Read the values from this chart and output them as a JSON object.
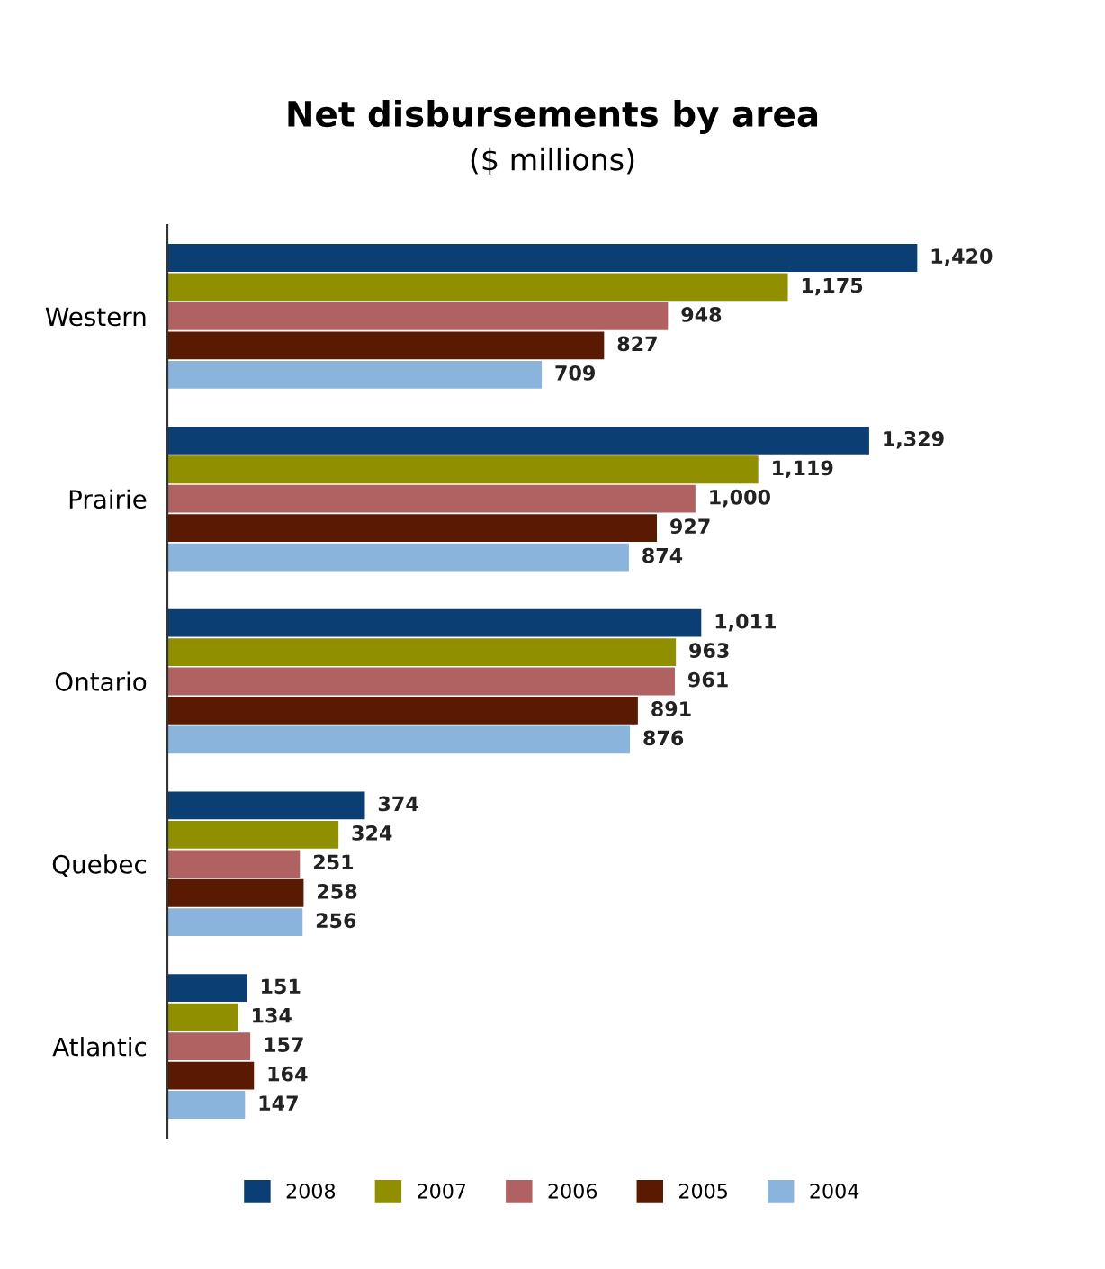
{
  "chart_data": {
    "type": "bar",
    "orientation": "horizontal",
    "title": "Net disbursements by area",
    "subtitle": "($ millions)",
    "categories": [
      "Western",
      "Prairie",
      "Ontario",
      "Quebec",
      "Atlantic"
    ],
    "series": [
      {
        "name": "2008",
        "color": "#0b3f73",
        "values": [
          1420,
          1329,
          1011,
          374,
          151
        ],
        "value_labels": [
          "1,420",
          "1,329",
          "1,011",
          "374",
          "151"
        ]
      },
      {
        "name": "2007",
        "color": "#8f8f00",
        "values": [
          1175,
          1119,
          963,
          324,
          134
        ],
        "value_labels": [
          "1,175",
          "1,119",
          "963",
          "324",
          "134"
        ]
      },
      {
        "name": "2006",
        "color": "#b06262",
        "values": [
          948,
          1000,
          961,
          251,
          157
        ],
        "value_labels": [
          "948",
          "1,000",
          "961",
          "251",
          "157"
        ]
      },
      {
        "name": "2005",
        "color": "#5a1a02",
        "values": [
          827,
          927,
          891,
          258,
          164
        ],
        "value_labels": [
          "827",
          "927",
          "891",
          "258",
          "164"
        ]
      },
      {
        "name": "2004",
        "color": "#8ab4dc",
        "values": [
          709,
          874,
          876,
          256,
          147
        ],
        "value_labels": [
          "709",
          "874",
          "876",
          "256",
          "147"
        ]
      }
    ],
    "legend": "bottom",
    "tick_labels": "y"
  }
}
